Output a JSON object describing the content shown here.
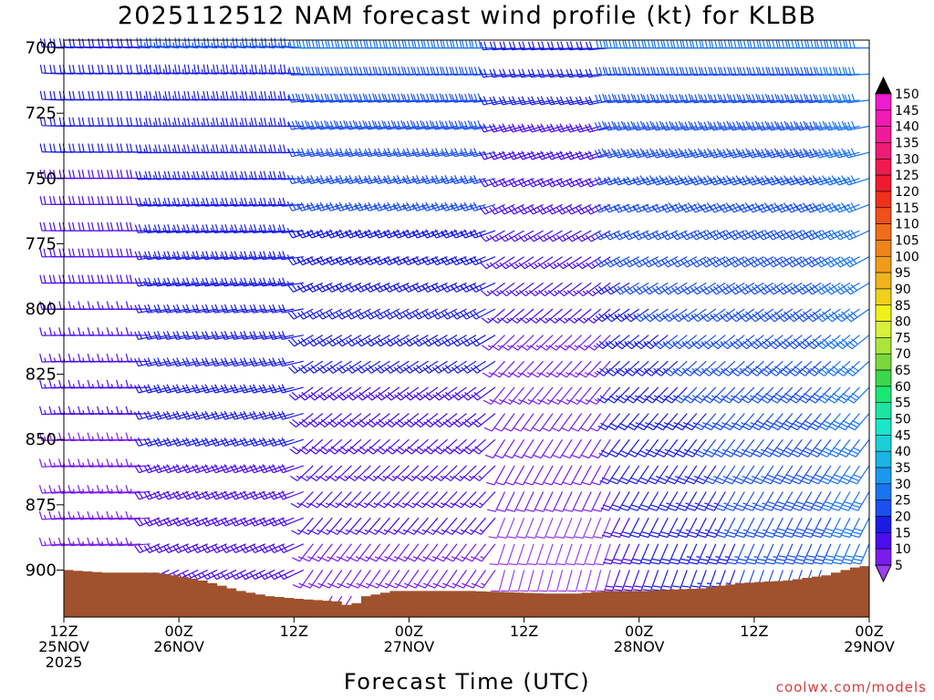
{
  "credit": "coolwx.com/models",
  "chart_data": {
    "type": "wind-barb-profile",
    "title": "2025112512 NAM forecast wind profile (kt) for KLBB",
    "xlabel": "Forecast Time (UTC)",
    "ylabel": "",
    "y_scale": "pressure (reversed)",
    "ylim": [
      918,
      697
    ],
    "yticks": [
      700,
      725,
      750,
      775,
      800,
      825,
      850,
      875,
      900
    ],
    "x_hours_range": [
      0,
      84
    ],
    "xticks": [
      {
        "hour": 0,
        "line1": "12Z",
        "line2": "25NOV",
        "line3": "2025"
      },
      {
        "hour": 12,
        "line1": "00Z",
        "line2": "26NOV",
        "line3": ""
      },
      {
        "hour": 24,
        "line1": "12Z",
        "line2": "",
        "line3": ""
      },
      {
        "hour": 36,
        "line1": "00Z",
        "line2": "27NOV",
        "line3": ""
      },
      {
        "hour": 48,
        "line1": "12Z",
        "line2": "",
        "line3": ""
      },
      {
        "hour": 60,
        "line1": "00Z",
        "line2": "28NOV",
        "line3": ""
      },
      {
        "hour": 72,
        "line1": "12Z",
        "line2": "",
        "line3": ""
      },
      {
        "hour": 84,
        "line1": "00Z",
        "line2": "29NOV",
        "line3": ""
      }
    ],
    "pressure_levels": [
      700,
      710,
      720,
      730,
      740,
      750,
      760,
      770,
      780,
      790,
      800,
      810,
      820,
      830,
      840,
      850,
      860,
      870,
      880,
      890,
      900,
      910
    ],
    "time_step_hours": 1,
    "wind_model": "estimated from barb shapes; direction degrees (from) and speed kt vary smoothly with time and level",
    "surface_pressure": [
      {
        "hour": 0,
        "p": 900
      },
      {
        "hour": 4,
        "p": 901
      },
      {
        "hour": 9,
        "p": 901
      },
      {
        "hour": 11,
        "p": 902
      },
      {
        "hour": 14,
        "p": 904
      },
      {
        "hour": 18,
        "p": 908
      },
      {
        "hour": 21,
        "p": 910
      },
      {
        "hour": 24,
        "p": 911
      },
      {
        "hour": 28,
        "p": 912
      },
      {
        "hour": 29.5,
        "p": 914
      },
      {
        "hour": 31,
        "p": 910
      },
      {
        "hour": 34,
        "p": 908
      },
      {
        "hour": 42,
        "p": 908
      },
      {
        "hour": 50,
        "p": 909
      },
      {
        "hour": 53,
        "p": 909
      },
      {
        "hour": 56,
        "p": 908
      },
      {
        "hour": 60,
        "p": 908
      },
      {
        "hour": 66,
        "p": 907
      },
      {
        "hour": 70,
        "p": 905
      },
      {
        "hour": 75,
        "p": 904
      },
      {
        "hour": 79,
        "p": 902
      },
      {
        "hour": 82,
        "p": 899
      },
      {
        "hour": 84,
        "p": 898
      }
    ],
    "colorbar": {
      "levels": [
        5,
        10,
        15,
        20,
        25,
        30,
        35,
        40,
        45,
        50,
        55,
        60,
        65,
        70,
        75,
        80,
        85,
        90,
        95,
        100,
        105,
        110,
        115,
        120,
        125,
        130,
        135,
        140,
        145,
        150
      ],
      "colors": [
        "#9a3ef0",
        "#7a1cf0",
        "#4a0cf0",
        "#1a1ce6",
        "#1a50f0",
        "#1a74f0",
        "#1a98f0",
        "#1ab4e6",
        "#1ad0d8",
        "#1ae6c8",
        "#1ae6a0",
        "#1ae674",
        "#3ad84a",
        "#7ad83a",
        "#aae63a",
        "#d8f03a",
        "#f0f01a",
        "#f0d01a",
        "#f0b41a",
        "#f09c1a",
        "#f0841a",
        "#f06c1a",
        "#f0501a",
        "#f0301a",
        "#f01a30",
        "#f01a50",
        "#f01a74",
        "#f01a98",
        "#f01ab4",
        "#f01ad0"
      ],
      "top_arrow_color": "#000000"
    },
    "ground_color": "#a0522d"
  }
}
